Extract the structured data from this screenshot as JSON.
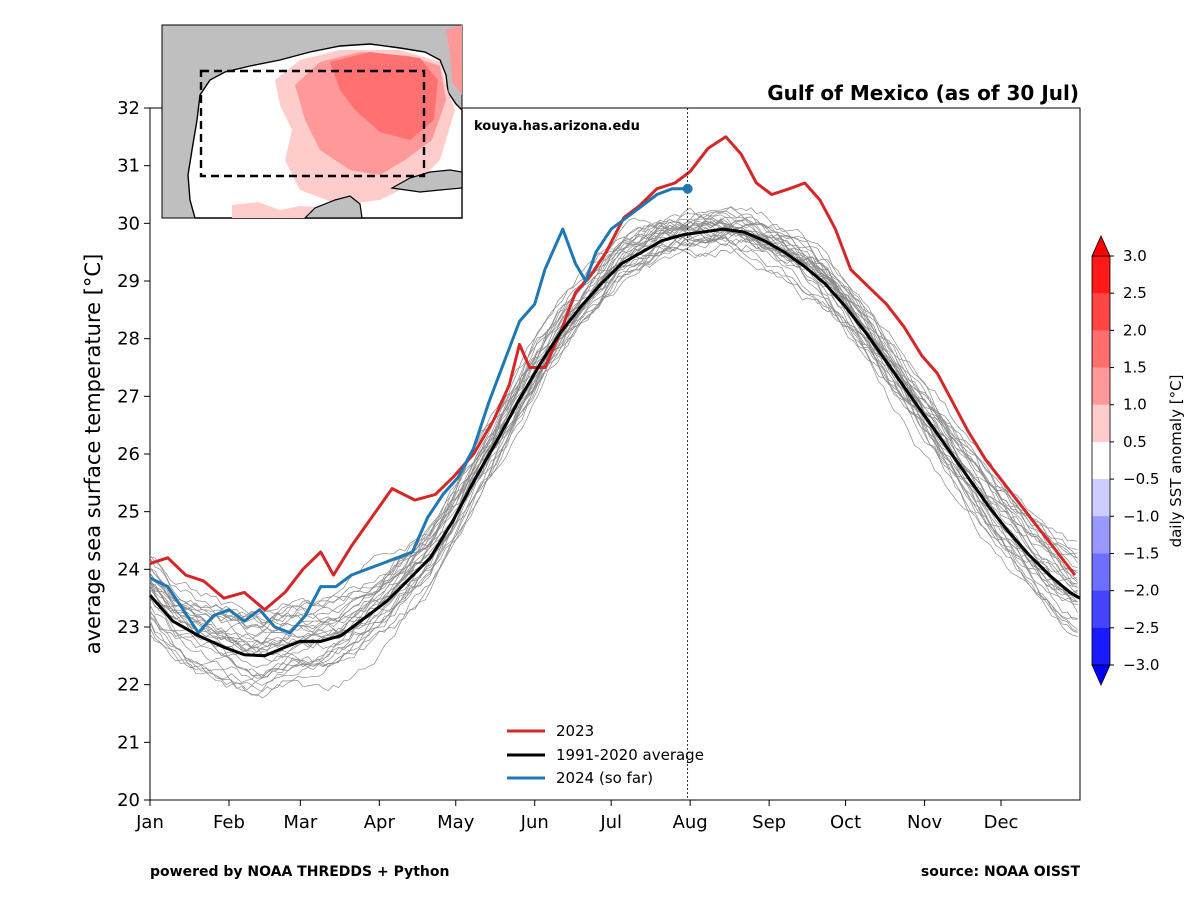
{
  "chart_data": {
    "type": "line",
    "title": "Gulf of Mexico (as of 30 Jul)",
    "ylabel": "average sea surface temperature [°C]",
    "ylim": [
      20,
      32
    ],
    "yticks": [
      20,
      21,
      22,
      23,
      24,
      25,
      26,
      27,
      28,
      29,
      30,
      31,
      32
    ],
    "xlim_doy": [
      1,
      366
    ],
    "month_labels": [
      "Jan",
      "Feb",
      "Mar",
      "Apr",
      "May",
      "Jun",
      "Jul",
      "Aug",
      "Sep",
      "Oct",
      "Nov",
      "Dec"
    ],
    "month_start_doy": [
      1,
      32,
      60,
      91,
      121,
      152,
      182,
      213,
      244,
      274,
      305,
      335
    ],
    "current_day_doy": 212,
    "grid": false,
    "legend_position": "lower-center",
    "series": [
      {
        "name": "2023",
        "color": "#d62728",
        "points": [
          [
            1,
            24.1
          ],
          [
            8,
            24.2
          ],
          [
            15,
            23.9
          ],
          [
            22,
            23.8
          ],
          [
            30,
            23.5
          ],
          [
            38,
            23.6
          ],
          [
            46,
            23.3
          ],
          [
            54,
            23.6
          ],
          [
            61,
            24.0
          ],
          [
            68,
            24.3
          ],
          [
            73,
            23.9
          ],
          [
            80,
            24.4
          ],
          [
            88,
            24.9
          ],
          [
            96,
            25.4
          ],
          [
            105,
            25.2
          ],
          [
            113,
            25.3
          ],
          [
            120,
            25.6
          ],
          [
            128,
            26.0
          ],
          [
            136,
            26.6
          ],
          [
            142,
            27.2
          ],
          [
            146,
            27.9
          ],
          [
            150,
            27.5
          ],
          [
            156,
            27.5
          ],
          [
            162,
            28.1
          ],
          [
            168,
            28.8
          ],
          [
            174,
            29.1
          ],
          [
            180,
            29.5
          ],
          [
            187,
            30.1
          ],
          [
            193,
            30.3
          ],
          [
            200,
            30.6
          ],
          [
            207,
            30.7
          ],
          [
            213,
            30.9
          ],
          [
            220,
            31.3
          ],
          [
            227,
            31.5
          ],
          [
            233,
            31.2
          ],
          [
            239,
            30.7
          ],
          [
            245,
            30.5
          ],
          [
            252,
            30.6
          ],
          [
            258,
            30.7
          ],
          [
            264,
            30.4
          ],
          [
            270,
            29.9
          ],
          [
            276,
            29.2
          ],
          [
            283,
            28.9
          ],
          [
            290,
            28.6
          ],
          [
            297,
            28.2
          ],
          [
            304,
            27.7
          ],
          [
            310,
            27.4
          ],
          [
            316,
            26.9
          ],
          [
            322,
            26.4
          ],
          [
            329,
            25.9
          ],
          [
            336,
            25.5
          ],
          [
            343,
            25.1
          ],
          [
            350,
            24.7
          ],
          [
            357,
            24.3
          ],
          [
            364,
            23.9
          ]
        ]
      },
      {
        "name": "1991-2020 average",
        "color": "#000000",
        "points": [
          [
            1,
            23.55
          ],
          [
            10,
            23.1
          ],
          [
            20,
            22.85
          ],
          [
            30,
            22.65
          ],
          [
            38,
            22.52
          ],
          [
            46,
            22.5
          ],
          [
            54,
            22.65
          ],
          [
            60,
            22.75
          ],
          [
            68,
            22.75
          ],
          [
            76,
            22.85
          ],
          [
            85,
            23.15
          ],
          [
            94,
            23.45
          ],
          [
            102,
            23.8
          ],
          [
            111,
            24.2
          ],
          [
            120,
            24.85
          ],
          [
            129,
            25.6
          ],
          [
            138,
            26.3
          ],
          [
            146,
            26.95
          ],
          [
            154,
            27.55
          ],
          [
            162,
            28.1
          ],
          [
            170,
            28.55
          ],
          [
            178,
            28.95
          ],
          [
            186,
            29.3
          ],
          [
            194,
            29.5
          ],
          [
            202,
            29.7
          ],
          [
            210,
            29.8
          ],
          [
            218,
            29.85
          ],
          [
            226,
            29.9
          ],
          [
            234,
            29.85
          ],
          [
            242,
            29.7
          ],
          [
            250,
            29.5
          ],
          [
            258,
            29.25
          ],
          [
            266,
            28.95
          ],
          [
            274,
            28.55
          ],
          [
            282,
            28.1
          ],
          [
            290,
            27.6
          ],
          [
            298,
            27.1
          ],
          [
            306,
            26.6
          ],
          [
            314,
            26.1
          ],
          [
            322,
            25.6
          ],
          [
            330,
            25.1
          ],
          [
            338,
            24.65
          ],
          [
            346,
            24.25
          ],
          [
            354,
            23.9
          ],
          [
            362,
            23.6
          ],
          [
            366,
            23.5
          ]
        ]
      },
      {
        "name": "2024 (so far)",
        "color": "#1f77b4",
        "points": [
          [
            1,
            23.85
          ],
          [
            8,
            23.7
          ],
          [
            14,
            23.3
          ],
          [
            20,
            22.9
          ],
          [
            26,
            23.2
          ],
          [
            32,
            23.3
          ],
          [
            38,
            23.1
          ],
          [
            44,
            23.3
          ],
          [
            50,
            23.0
          ],
          [
            56,
            22.9
          ],
          [
            62,
            23.2
          ],
          [
            68,
            23.7
          ],
          [
            74,
            23.7
          ],
          [
            80,
            23.9
          ],
          [
            86,
            24.0
          ],
          [
            92,
            24.1
          ],
          [
            98,
            24.2
          ],
          [
            104,
            24.3
          ],
          [
            110,
            24.9
          ],
          [
            116,
            25.3
          ],
          [
            122,
            25.6
          ],
          [
            128,
            26.1
          ],
          [
            134,
            26.9
          ],
          [
            140,
            27.6
          ],
          [
            146,
            28.3
          ],
          [
            152,
            28.6
          ],
          [
            156,
            29.2
          ],
          [
            160,
            29.6
          ],
          [
            163,
            29.9
          ],
          [
            168,
            29.3
          ],
          [
            172,
            29.0
          ],
          [
            176,
            29.5
          ],
          [
            182,
            29.9
          ],
          [
            188,
            30.1
          ],
          [
            194,
            30.3
          ],
          [
            200,
            30.5
          ],
          [
            206,
            30.6
          ],
          [
            212,
            30.6
          ]
        ]
      }
    ],
    "historical_years": "1991-2022 (thin gray lines, unlabeled)",
    "colorbar": {
      "label": "daily SST anomaly [°C]",
      "ticks": [
        "3.0",
        "2.5",
        "2.0",
        "1.5",
        "1.0",
        "0.5",
        "−0.5",
        "−1.0",
        "−1.5",
        "−2.0",
        "−2.5",
        "−3.0"
      ],
      "band_colors": [
        "#ff1a1a",
        "#ff4444",
        "#ff6e6e",
        "#ff9898",
        "#ffcccc",
        "#ffffff",
        "#ccccff",
        "#9898ff",
        "#6e6eff",
        "#4444ff",
        "#1a1aff"
      ],
      "extend_high_color": "#ff0000",
      "extend_low_color": "#0000ff"
    }
  },
  "texts": {
    "credit": "kouya.has.arizona.edu",
    "footer_left": "powered by NOAA THREDDS + Python",
    "footer_right": "source: NOAA OISST"
  }
}
